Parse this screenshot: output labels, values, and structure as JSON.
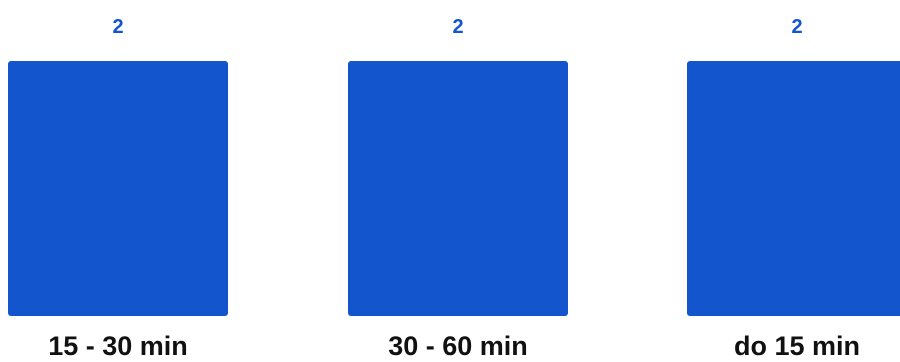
{
  "chart_data": {
    "type": "bar",
    "categories": [
      "15 - 30 min",
      "30 - 60 min",
      "do 15 min"
    ],
    "values": [
      2,
      2,
      2
    ],
    "data_labels": [
      "2",
      "2",
      "2"
    ],
    "ylim": [
      0,
      2
    ],
    "grid": false,
    "legend": "none",
    "colors": {
      "bar": "#1255CC",
      "value_label": "#1255CC",
      "category_label": "#111111"
    }
  }
}
